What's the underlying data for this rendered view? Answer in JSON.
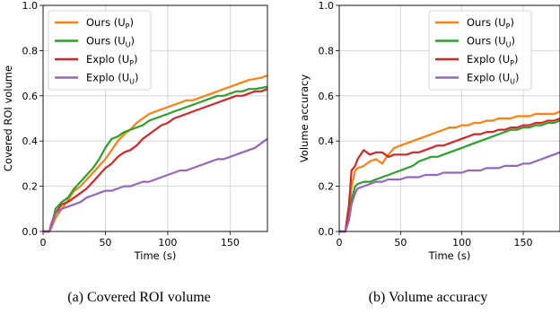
{
  "colors": {
    "ours_p": "#ff7f0e",
    "ours_u": "#2ca02c",
    "explo_p": "#d62728",
    "explo_u": "#9467bd"
  },
  "chart_data": [
    {
      "type": "line",
      "caption": "(a) Covered ROI volume",
      "xlabel": "Time (s)",
      "ylabel": "Covered ROI volume",
      "xlim": [
        0,
        180
      ],
      "ylim": [
        0,
        1.0
      ],
      "xticks": [
        "0",
        "50",
        "100",
        "150"
      ],
      "yticks": [
        "0.0",
        "0.2",
        "0.4",
        "0.6",
        "0.8",
        "1.0"
      ],
      "grid": true,
      "legend": "top-left",
      "series": [
        {
          "name": "Ours (U_P)",
          "color_key": "ours_p",
          "x": [
            0,
            5,
            7,
            10,
            15,
            20,
            25,
            30,
            35,
            40,
            45,
            50,
            55,
            60,
            65,
            70,
            75,
            80,
            85,
            90,
            95,
            100,
            105,
            110,
            115,
            120,
            125,
            130,
            135,
            140,
            145,
            150,
            155,
            160,
            165,
            170,
            175,
            180
          ],
          "y": [
            0,
            0,
            0.02,
            0.06,
            0.1,
            0.14,
            0.18,
            0.2,
            0.23,
            0.26,
            0.29,
            0.32,
            0.36,
            0.4,
            0.43,
            0.45,
            0.48,
            0.5,
            0.52,
            0.53,
            0.54,
            0.55,
            0.56,
            0.57,
            0.58,
            0.58,
            0.59,
            0.6,
            0.61,
            0.62,
            0.63,
            0.64,
            0.65,
            0.66,
            0.67,
            0.675,
            0.68,
            0.69
          ]
        },
        {
          "name": "Ours (U_U)",
          "color_key": "ours_u",
          "x": [
            0,
            5,
            7,
            10,
            15,
            20,
            25,
            30,
            35,
            40,
            45,
            50,
            55,
            60,
            65,
            70,
            75,
            80,
            85,
            90,
            95,
            100,
            105,
            110,
            115,
            120,
            125,
            130,
            135,
            140,
            145,
            150,
            155,
            160,
            165,
            170,
            175,
            180
          ],
          "y": [
            0,
            0,
            0.03,
            0.1,
            0.13,
            0.15,
            0.19,
            0.22,
            0.25,
            0.28,
            0.32,
            0.37,
            0.41,
            0.42,
            0.44,
            0.45,
            0.46,
            0.47,
            0.49,
            0.5,
            0.51,
            0.52,
            0.53,
            0.54,
            0.55,
            0.56,
            0.57,
            0.58,
            0.59,
            0.6,
            0.6,
            0.61,
            0.62,
            0.62,
            0.63,
            0.63,
            0.635,
            0.64
          ]
        },
        {
          "name": "Explo (U_P)",
          "color_key": "explo_p",
          "x": [
            0,
            5,
            7,
            10,
            15,
            20,
            25,
            30,
            35,
            40,
            45,
            50,
            55,
            60,
            65,
            70,
            75,
            80,
            85,
            90,
            95,
            100,
            105,
            110,
            115,
            120,
            125,
            130,
            135,
            140,
            145,
            150,
            155,
            160,
            165,
            170,
            175,
            180
          ],
          "y": [
            0,
            0,
            0.04,
            0.08,
            0.12,
            0.13,
            0.15,
            0.17,
            0.19,
            0.22,
            0.25,
            0.28,
            0.3,
            0.33,
            0.35,
            0.36,
            0.38,
            0.41,
            0.43,
            0.45,
            0.47,
            0.48,
            0.5,
            0.51,
            0.52,
            0.53,
            0.54,
            0.55,
            0.56,
            0.57,
            0.58,
            0.59,
            0.6,
            0.6,
            0.61,
            0.62,
            0.62,
            0.63
          ]
        },
        {
          "name": "Explo (U_U)",
          "color_key": "explo_u",
          "x": [
            0,
            5,
            7,
            10,
            15,
            20,
            25,
            30,
            35,
            40,
            45,
            50,
            55,
            60,
            65,
            70,
            75,
            80,
            85,
            90,
            95,
            100,
            105,
            110,
            115,
            120,
            125,
            130,
            135,
            140,
            145,
            150,
            155,
            160,
            165,
            170,
            175,
            180
          ],
          "y": [
            0,
            0,
            0.03,
            0.08,
            0.1,
            0.11,
            0.12,
            0.13,
            0.15,
            0.16,
            0.17,
            0.18,
            0.18,
            0.19,
            0.2,
            0.2,
            0.21,
            0.22,
            0.22,
            0.23,
            0.24,
            0.25,
            0.26,
            0.27,
            0.27,
            0.28,
            0.29,
            0.3,
            0.31,
            0.32,
            0.32,
            0.33,
            0.34,
            0.35,
            0.36,
            0.37,
            0.39,
            0.41
          ]
        }
      ]
    },
    {
      "type": "line",
      "caption": "(b) Volume accuracy",
      "xlabel": "Time (s)",
      "ylabel": "Volume accuracy",
      "xlim": [
        0,
        180
      ],
      "ylim": [
        0,
        1.0
      ],
      "xticks": [
        "0",
        "50",
        "100",
        "150"
      ],
      "yticks": [
        "0.0",
        "0.2",
        "0.4",
        "0.6",
        "0.8",
        "1.0"
      ],
      "grid": true,
      "legend": "top-right",
      "series": [
        {
          "name": "Ours (U_P)",
          "color_key": "ours_p",
          "x": [
            0,
            5,
            8,
            10,
            13,
            15,
            20,
            25,
            30,
            35,
            40,
            45,
            50,
            55,
            60,
            65,
            70,
            75,
            80,
            85,
            90,
            95,
            100,
            105,
            110,
            115,
            120,
            125,
            130,
            135,
            140,
            145,
            150,
            155,
            160,
            165,
            170,
            175,
            180
          ],
          "y": [
            0,
            0,
            0.08,
            0.2,
            0.27,
            0.28,
            0.29,
            0.31,
            0.32,
            0.3,
            0.34,
            0.37,
            0.38,
            0.39,
            0.4,
            0.41,
            0.42,
            0.43,
            0.44,
            0.45,
            0.46,
            0.46,
            0.47,
            0.47,
            0.48,
            0.48,
            0.49,
            0.49,
            0.5,
            0.5,
            0.5,
            0.51,
            0.51,
            0.51,
            0.52,
            0.52,
            0.52,
            0.52,
            0.53
          ]
        },
        {
          "name": "Ours (U_U)",
          "color_key": "ours_u",
          "x": [
            0,
            5,
            8,
            10,
            13,
            15,
            20,
            25,
            30,
            35,
            40,
            45,
            50,
            55,
            60,
            65,
            70,
            75,
            80,
            85,
            90,
            95,
            100,
            105,
            110,
            115,
            120,
            125,
            130,
            135,
            140,
            145,
            150,
            155,
            160,
            165,
            170,
            175,
            180
          ],
          "y": [
            0,
            0,
            0.06,
            0.14,
            0.2,
            0.21,
            0.22,
            0.22,
            0.23,
            0.24,
            0.25,
            0.26,
            0.27,
            0.28,
            0.29,
            0.31,
            0.32,
            0.33,
            0.33,
            0.34,
            0.35,
            0.36,
            0.37,
            0.38,
            0.39,
            0.4,
            0.41,
            0.42,
            0.43,
            0.44,
            0.45,
            0.45,
            0.46,
            0.46,
            0.47,
            0.47,
            0.48,
            0.48,
            0.49
          ]
        },
        {
          "name": "Explo (U_P)",
          "color_key": "explo_p",
          "x": [
            0,
            5,
            8,
            10,
            13,
            15,
            20,
            25,
            30,
            35,
            40,
            45,
            50,
            55,
            60,
            65,
            70,
            75,
            80,
            85,
            90,
            95,
            100,
            105,
            110,
            115,
            120,
            125,
            130,
            135,
            140,
            145,
            150,
            155,
            160,
            165,
            170,
            175,
            180
          ],
          "y": [
            0,
            0,
            0.12,
            0.27,
            0.29,
            0.32,
            0.36,
            0.34,
            0.35,
            0.35,
            0.33,
            0.34,
            0.34,
            0.34,
            0.35,
            0.35,
            0.36,
            0.37,
            0.38,
            0.38,
            0.39,
            0.4,
            0.41,
            0.42,
            0.43,
            0.43,
            0.44,
            0.44,
            0.45,
            0.45,
            0.46,
            0.46,
            0.47,
            0.47,
            0.48,
            0.48,
            0.49,
            0.49,
            0.5
          ]
        },
        {
          "name": "Explo (U_U)",
          "color_key": "explo_u",
          "x": [
            0,
            5,
            8,
            10,
            13,
            15,
            20,
            25,
            30,
            35,
            40,
            45,
            50,
            55,
            60,
            65,
            70,
            75,
            80,
            85,
            90,
            95,
            100,
            105,
            110,
            115,
            120,
            125,
            130,
            135,
            140,
            145,
            150,
            155,
            160,
            165,
            170,
            175,
            180
          ],
          "y": [
            0,
            0,
            0.05,
            0.12,
            0.17,
            0.19,
            0.2,
            0.21,
            0.22,
            0.22,
            0.23,
            0.23,
            0.23,
            0.24,
            0.24,
            0.24,
            0.25,
            0.25,
            0.25,
            0.26,
            0.26,
            0.26,
            0.26,
            0.27,
            0.27,
            0.27,
            0.28,
            0.28,
            0.28,
            0.29,
            0.29,
            0.29,
            0.3,
            0.3,
            0.31,
            0.32,
            0.33,
            0.34,
            0.35
          ]
        }
      ]
    }
  ]
}
